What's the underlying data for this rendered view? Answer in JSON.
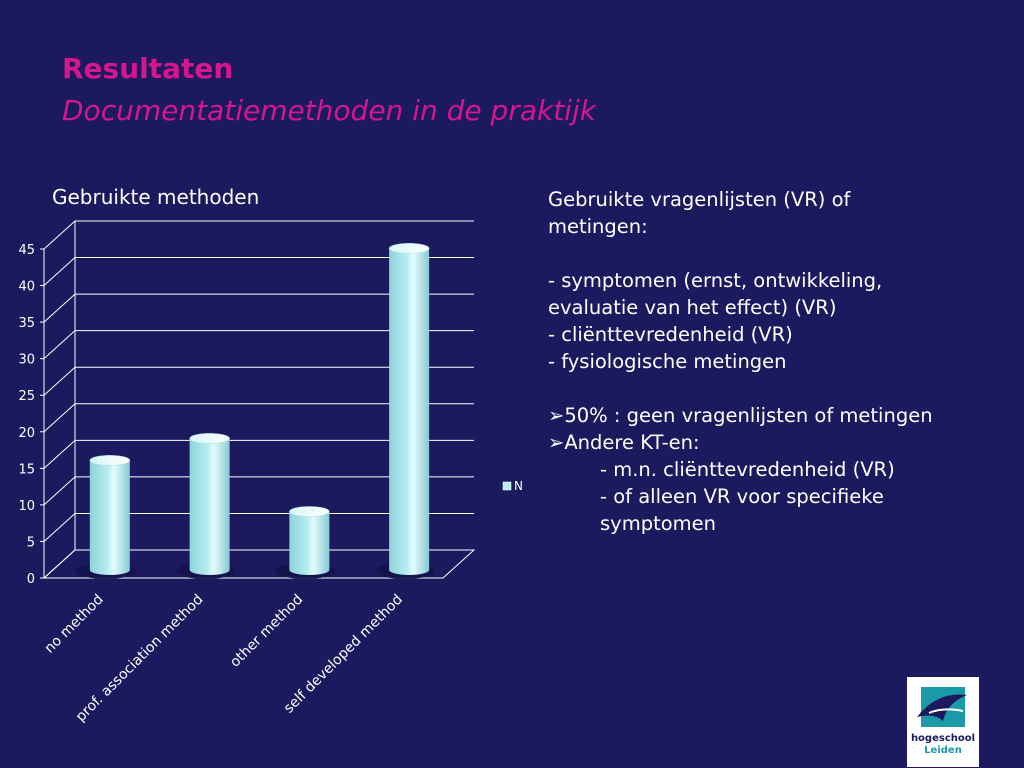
{
  "slide": {
    "title": "Resultaten",
    "subtitle": "Documentatiemethoden in de praktijk"
  },
  "chart_title": "Gebruikte methoden",
  "chart_data": {
    "type": "bar",
    "categories": [
      "no method",
      "prof. association method",
      "other method",
      "self developed method"
    ],
    "series": [
      {
        "name": "N",
        "values": [
          15,
          18,
          8,
          44
        ]
      }
    ],
    "ylim": [
      0,
      45
    ],
    "yticks": [
      "0",
      "5",
      "10",
      "15",
      "20",
      "25",
      "30",
      "35",
      "40",
      "45"
    ],
    "grid": true,
    "legend_position": "right",
    "bar_color": "#b7eef2"
  },
  "text_panel": {
    "lines": [
      {
        "text": "Gebruikte vragenlijsten (VR) of",
        "indent": false
      },
      {
        "text": "metingen:",
        "indent": false
      },
      {
        "text": "",
        "indent": false
      },
      {
        "text": "- symptomen (ernst, ontwikkeling,",
        "indent": false
      },
      {
        "text": "evaluatie van het effect) (VR)",
        "indent": false
      },
      {
        "text": "- cliënttevredenheid (VR)",
        "indent": false
      },
      {
        "text": "- fysiologische metingen",
        "indent": false
      },
      {
        "text": "",
        "indent": false
      },
      {
        "text": "➢50% : geen vragenlijsten of metingen",
        "indent": false
      },
      {
        "text": "➢Andere KT-en:",
        "indent": false
      },
      {
        "text": "- m.n. cliënttevredenheid (VR)",
        "indent": true
      },
      {
        "text": "- of alleen VR voor specifieke",
        "indent": true
      },
      {
        "text": "symptomen",
        "indent": true
      }
    ]
  },
  "logo": {
    "line1": "hogeschool",
    "line2": "Leiden"
  },
  "colors": {
    "background": "#1b1a5e",
    "title": "#d6168c",
    "logo_teal": "#1a9aa6",
    "logo_navy": "#1b1a5e"
  }
}
